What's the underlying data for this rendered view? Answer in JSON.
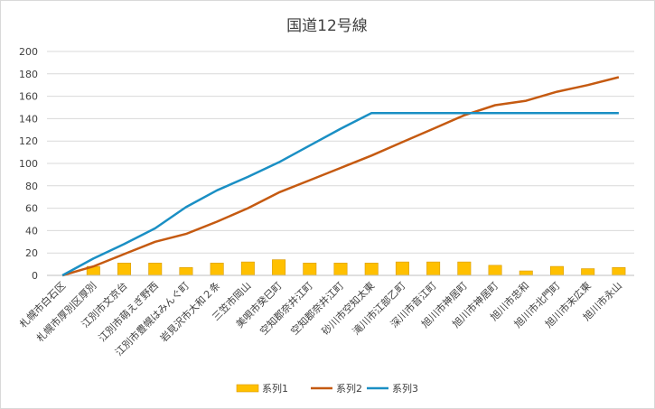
{
  "chart_data": {
    "type": "bar+line",
    "title": "国道12号線",
    "categories": [
      "札幌市白石区",
      "札幌市厚別区厚別",
      "江別市文京台",
      "江別市萌えぎ野西",
      "江別市豊幌はみんぐ町",
      "岩見沢市大和２条",
      "三笠市岡山",
      "美唄市癸巳町",
      "空知郡奈井江町",
      "空知郡奈井江町",
      "砂川市空知太東",
      "滝川市江部乙町",
      "深川市音江町",
      "旭川市神居町",
      "旭川市神居町",
      "旭川市忠和",
      "旭川市北門町",
      "旭川市末広東",
      "旭川市永山"
    ],
    "series": [
      {
        "name": "系列1",
        "kind": "bar",
        "color": "#ffc000",
        "values": [
          0,
          8,
          11,
          11,
          7,
          11,
          12,
          14,
          11,
          11,
          11,
          12,
          12,
          12,
          9,
          4,
          8,
          6,
          7
        ]
      },
      {
        "name": "系列2",
        "kind": "line",
        "color": "#c55a11",
        "values": [
          0,
          8,
          19,
          30,
          37,
          48,
          60,
          74,
          85,
          96,
          107,
          119,
          131,
          143,
          152,
          156,
          164,
          170,
          177
        ]
      },
      {
        "name": "系列3",
        "kind": "line",
        "color": "#1a8fc4",
        "values": [
          0,
          15,
          28,
          42,
          61,
          76,
          88,
          101,
          116,
          131,
          145,
          145,
          145,
          145,
          145,
          145,
          145,
          145,
          145
        ]
      }
    ],
    "ylim": [
      0,
      200
    ],
    "yticks": [
      0,
      20,
      40,
      60,
      80,
      100,
      120,
      140,
      160,
      180,
      200
    ],
    "grid": true,
    "legend": "bottom",
    "xlabel": "",
    "ylabel": ""
  }
}
